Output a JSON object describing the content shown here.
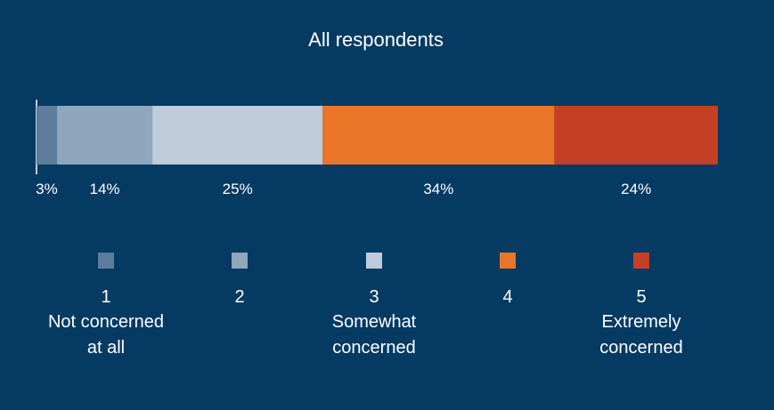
{
  "chart_data": {
    "type": "bar",
    "orientation": "horizontal-stacked",
    "title": "All respondents",
    "categories": [
      "All respondents"
    ],
    "series": [
      {
        "name": "1",
        "values": [
          3
        ],
        "label": "3%",
        "color": "#5c7d9b"
      },
      {
        "name": "2",
        "values": [
          14
        ],
        "label": "14%",
        "color": "#8fa6bd"
      },
      {
        "name": "3",
        "values": [
          25
        ],
        "label": "25%",
        "color": "#bfcbd8"
      },
      {
        "name": "4",
        "values": [
          34
        ],
        "label": "34%",
        "color": "#e87528"
      },
      {
        "name": "5",
        "values": [
          24
        ],
        "label": "24%",
        "color": "#c53f27"
      }
    ],
    "xlim": [
      0,
      100
    ],
    "grid": false,
    "legend": {
      "placement": "bottom",
      "items": [
        {
          "num": "1",
          "text": [
            "Not concerned",
            "at all"
          ]
        },
        {
          "num": "2",
          "text": []
        },
        {
          "num": "3",
          "text": [
            "Somewhat",
            "concerned"
          ]
        },
        {
          "num": "4",
          "text": []
        },
        {
          "num": "5",
          "text": [
            "Extremely",
            "concerned"
          ]
        }
      ]
    }
  },
  "colors": {
    "background": "#053a63",
    "text": "#ffffff"
  }
}
